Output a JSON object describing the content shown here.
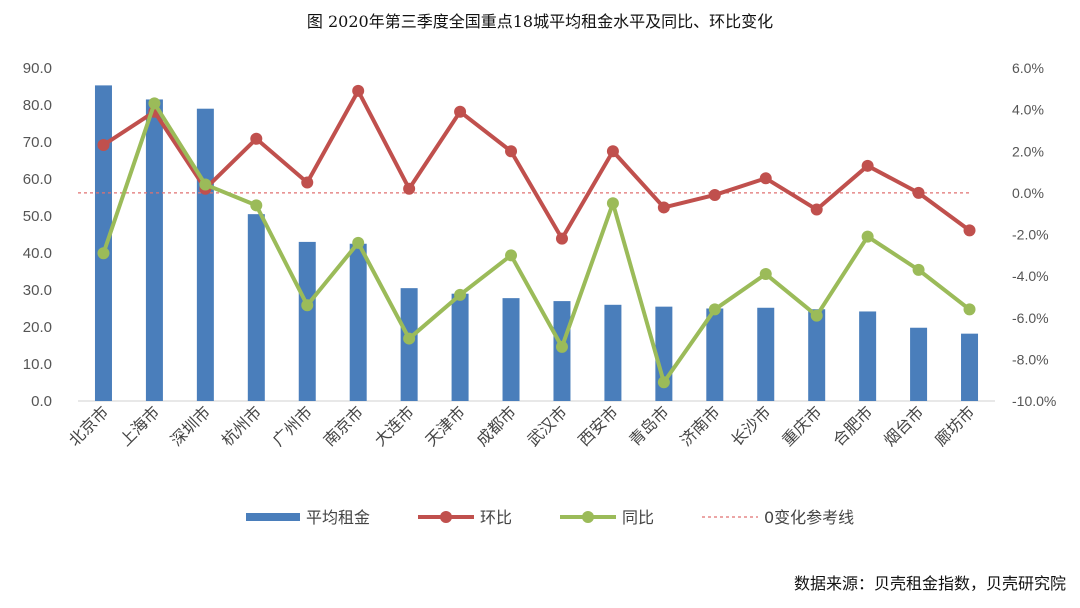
{
  "chart_data": {
    "type": "bar+line",
    "title": "图 2020年第三季度全国重点18城平均租金水平及同比、环比变化",
    "source": "数据来源：贝壳租金指数，贝壳研究院",
    "categories": [
      "北京市",
      "上海市",
      "深圳市",
      "杭州市",
      "广州市",
      "南京市",
      "大连市",
      "天津市",
      "成都市",
      "武汉市",
      "西安市",
      "青岛市",
      "济南市",
      "长沙市",
      "重庆市",
      "合肥市",
      "烟台市",
      "廊坊市"
    ],
    "left_axis": {
      "min": 0,
      "max": 90,
      "step": 10,
      "ticks": [
        "0.0",
        "10.0",
        "20.0",
        "30.0",
        "40.0",
        "50.0",
        "60.0",
        "70.0",
        "80.0",
        "90.0"
      ]
    },
    "right_axis": {
      "min": -10,
      "max": 6,
      "step": 2,
      "ticks": [
        "-10.0%",
        "-8.0%",
        "-6.0%",
        "-4.0%",
        "-2.0%",
        "0.0%",
        "2.0%",
        "4.0%",
        "6.0%"
      ]
    },
    "series": [
      {
        "name": "平均租金",
        "kind": "bar",
        "axis": "left",
        "color": "#4a7ebb",
        "values": [
          85.3,
          81.5,
          79.0,
          50.5,
          43.0,
          42.5,
          30.5,
          29.0,
          27.8,
          27.0,
          26.0,
          25.5,
          25.0,
          25.2,
          24.8,
          24.2,
          19.8,
          18.2
        ]
      },
      {
        "name": "环比",
        "kind": "line",
        "axis": "right",
        "color": "#c0504d",
        "values": [
          2.3,
          3.9,
          0.2,
          2.6,
          0.5,
          4.9,
          0.2,
          3.9,
          2.0,
          -2.2,
          2.0,
          -0.7,
          -0.1,
          0.7,
          -0.8,
          1.3,
          0.0,
          -1.8
        ]
      },
      {
        "name": "同比",
        "kind": "line",
        "axis": "right",
        "color": "#9bbb59",
        "values": [
          -2.9,
          4.3,
          0.4,
          -0.6,
          -5.4,
          -2.4,
          -7.0,
          -4.9,
          -3.0,
          -7.4,
          -0.5,
          -9.1,
          -5.6,
          -3.9,
          -5.9,
          -2.1,
          -3.7,
          -5.6
        ]
      },
      {
        "name": "0变化参考线",
        "kind": "reference",
        "axis": "right",
        "color": "#e07070",
        "value": 0
      }
    ],
    "grid": false,
    "legend_position": "bottom"
  }
}
